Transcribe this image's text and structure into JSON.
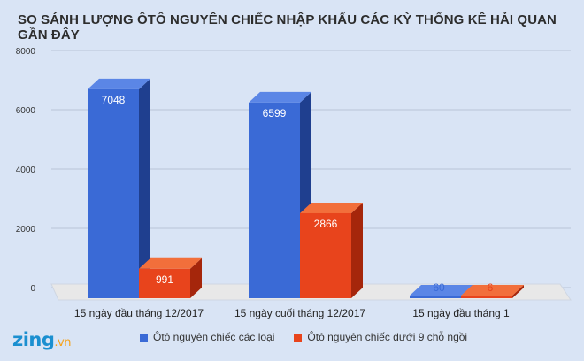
{
  "title": "SO SÁNH LƯỢNG ÔTÔ NGUYÊN CHIẾC NHẬP KHẨU CÁC KỲ THỐNG KÊ HẢI QUAN GẦN ĐÂY",
  "logo": {
    "main": "zing",
    "suffix": ".vn"
  },
  "colors": {
    "series1_front": "#3a6ad6",
    "series1_side": "#1f3f8f",
    "series1_top": "#5b86e6",
    "series2_front": "#e8441c",
    "series2_side": "#a5260b",
    "series2_top": "#f26f3b",
    "floor": "#e8e8e8",
    "grid": "#b9c5d8"
  },
  "chart_data": {
    "type": "bar",
    "title": "SO SÁNH LƯỢNG ÔTÔ NGUYÊN CHIẾC NHẬP KHẨU CÁC KỲ THỐNG KÊ HẢI QUAN GẦN ĐÂY",
    "categories": [
      "15 ngày đầu tháng 12/2017",
      "15 ngày cuối tháng 12/2017",
      "15 ngày đầu tháng 1"
    ],
    "series": [
      {
        "name": "Ôtô nguyên chiếc các loại",
        "values": [
          7048,
          6599,
          60
        ]
      },
      {
        "name": "Ôtô nguyên chiếc dưới 9 chỗ ngồi",
        "values": [
          991,
          2866,
          6
        ]
      }
    ],
    "ylim": [
      0,
      8000
    ],
    "yticks": [
      "0",
      "2000",
      "4000",
      "6000",
      "8000"
    ],
    "grid": true,
    "legend_position": "bottom"
  }
}
